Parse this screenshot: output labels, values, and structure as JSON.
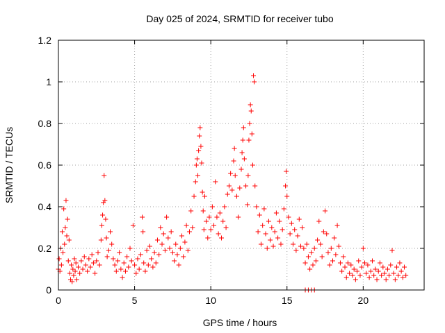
{
  "chart_data": {
    "type": "scatter",
    "title": "Day 025 of 2024, SRMTID for receiver tubo",
    "xlabel": "GPS time / hours",
    "ylabel": "SRMTID / TECUs",
    "xlim": [
      0,
      24
    ],
    "ylim": [
      0,
      1.2
    ],
    "xticks": [
      0,
      5,
      10,
      15,
      20
    ],
    "xtick_labels": [
      "0",
      "5",
      "10",
      "15",
      "20"
    ],
    "yticks": [
      0,
      0.2,
      0.4,
      0.6,
      0.8,
      1.0,
      1.2
    ],
    "ytick_labels": [
      "0",
      "0.2",
      "0.4",
      "0.6",
      "0.8",
      "1",
      "1.2"
    ],
    "grid": true,
    "marker": "+",
    "series": [
      {
        "name": "SRMTID",
        "color": "#ff0000",
        "points": [
          [
            0.0,
            0.1
          ],
          [
            0.05,
            0.15
          ],
          [
            0.1,
            0.09
          ],
          [
            0.15,
            0.2
          ],
          [
            0.2,
            0.12
          ],
          [
            0.25,
            0.28
          ],
          [
            0.3,
            0.18
          ],
          [
            0.35,
            0.39
          ],
          [
            0.4,
            0.22
          ],
          [
            0.45,
            0.3
          ],
          [
            0.5,
            0.43
          ],
          [
            0.55,
            0.26
          ],
          [
            0.6,
            0.34
          ],
          [
            0.65,
            0.14
          ],
          [
            0.7,
            0.24
          ],
          [
            0.75,
            0.08
          ],
          [
            0.8,
            0.05
          ],
          [
            0.85,
            0.12
          ],
          [
            0.9,
            0.04
          ],
          [
            0.95,
            0.1
          ],
          [
            1.0,
            0.07
          ],
          [
            1.05,
            0.15
          ],
          [
            1.1,
            0.09
          ],
          [
            1.15,
            0.13
          ],
          [
            1.2,
            0.05
          ],
          [
            1.3,
            0.11
          ],
          [
            1.4,
            0.08
          ],
          [
            1.5,
            0.14
          ],
          [
            1.6,
            0.1
          ],
          [
            1.7,
            0.16
          ],
          [
            1.8,
            0.12
          ],
          [
            1.9,
            0.09
          ],
          [
            2.0,
            0.15
          ],
          [
            2.1,
            0.11
          ],
          [
            2.2,
            0.17
          ],
          [
            2.3,
            0.13
          ],
          [
            2.4,
            0.08
          ],
          [
            2.5,
            0.14
          ],
          [
            2.6,
            0.18
          ],
          [
            2.7,
            0.12
          ],
          [
            2.8,
            0.24
          ],
          [
            2.85,
            0.31
          ],
          [
            2.9,
            0.36
          ],
          [
            2.95,
            0.42
          ],
          [
            3.0,
            0.55
          ],
          [
            3.05,
            0.43
          ],
          [
            3.1,
            0.34
          ],
          [
            3.15,
            0.25
          ],
          [
            3.2,
            0.16
          ],
          [
            3.3,
            0.19
          ],
          [
            3.4,
            0.28
          ],
          [
            3.5,
            0.22
          ],
          [
            3.6,
            0.15
          ],
          [
            3.7,
            0.12
          ],
          [
            3.8,
            0.09
          ],
          [
            3.9,
            0.14
          ],
          [
            4.0,
            0.18
          ],
          [
            4.1,
            0.1
          ],
          [
            4.2,
            0.06
          ],
          [
            4.3,
            0.13
          ],
          [
            4.4,
            0.09
          ],
          [
            4.5,
            0.16
          ],
          [
            4.6,
            0.11
          ],
          [
            4.7,
            0.2
          ],
          [
            4.8,
            0.14
          ],
          [
            4.9,
            0.31
          ],
          [
            5.0,
            0.12
          ],
          [
            5.1,
            0.08
          ],
          [
            5.2,
            0.15
          ],
          [
            5.3,
            0.1
          ],
          [
            5.4,
            0.17
          ],
          [
            5.5,
            0.35
          ],
          [
            5.55,
            0.28
          ],
          [
            5.6,
            0.13
          ],
          [
            5.7,
            0.09
          ],
          [
            5.8,
            0.19
          ],
          [
            5.9,
            0.12
          ],
          [
            6.0,
            0.21
          ],
          [
            6.1,
            0.15
          ],
          [
            6.2,
            0.11
          ],
          [
            6.3,
            0.18
          ],
          [
            6.4,
            0.13
          ],
          [
            6.5,
            0.24
          ],
          [
            6.6,
            0.17
          ],
          [
            6.7,
            0.3
          ],
          [
            6.8,
            0.22
          ],
          [
            6.9,
            0.27
          ],
          [
            7.0,
            0.19
          ],
          [
            7.1,
            0.35
          ],
          [
            7.2,
            0.25
          ],
          [
            7.3,
            0.2
          ],
          [
            7.4,
            0.28
          ],
          [
            7.5,
            0.18
          ],
          [
            7.6,
            0.14
          ],
          [
            7.7,
            0.22
          ],
          [
            7.8,
            0.17
          ],
          [
            7.9,
            0.12
          ],
          [
            8.0,
            0.2
          ],
          [
            8.1,
            0.26
          ],
          [
            8.2,
            0.16
          ],
          [
            8.3,
            0.23
          ],
          [
            8.4,
            0.31
          ],
          [
            8.5,
            0.19
          ],
          [
            8.6,
            0.28
          ],
          [
            8.7,
            0.38
          ],
          [
            8.8,
            0.3
          ],
          [
            8.9,
            0.45
          ],
          [
            9.0,
            0.52
          ],
          [
            9.05,
            0.6
          ],
          [
            9.1,
            0.63
          ],
          [
            9.15,
            0.55
          ],
          [
            9.2,
            0.67
          ],
          [
            9.25,
            0.74
          ],
          [
            9.3,
            0.78
          ],
          [
            9.35,
            0.69
          ],
          [
            9.4,
            0.61
          ],
          [
            9.45,
            0.47
          ],
          [
            9.5,
            0.38
          ],
          [
            9.55,
            0.29
          ],
          [
            9.6,
            0.45
          ],
          [
            9.7,
            0.33
          ],
          [
            9.8,
            0.25
          ],
          [
            9.9,
            0.35
          ],
          [
            10.0,
            0.29
          ],
          [
            10.1,
            0.4
          ],
          [
            10.2,
            0.31
          ],
          [
            10.3,
            0.52
          ],
          [
            10.4,
            0.35
          ],
          [
            10.5,
            0.27
          ],
          [
            10.6,
            0.37
          ],
          [
            10.7,
            0.25
          ],
          [
            10.8,
            0.33
          ],
          [
            10.9,
            0.4
          ],
          [
            11.0,
            0.3
          ],
          [
            11.1,
            0.46
          ],
          [
            11.2,
            0.5
          ],
          [
            11.3,
            0.56
          ],
          [
            11.4,
            0.48
          ],
          [
            11.5,
            0.62
          ],
          [
            11.55,
            0.68
          ],
          [
            11.6,
            0.55
          ],
          [
            11.7,
            0.45
          ],
          [
            11.8,
            0.35
          ],
          [
            11.9,
            0.49
          ],
          [
            12.0,
            0.58
          ],
          [
            12.05,
            0.66
          ],
          [
            12.1,
            0.72
          ],
          [
            12.15,
            0.78
          ],
          [
            12.2,
            0.63
          ],
          [
            12.3,
            0.5
          ],
          [
            12.4,
            0.41
          ],
          [
            12.45,
            0.55
          ],
          [
            12.5,
            0.72
          ],
          [
            12.55,
            0.8
          ],
          [
            12.6,
            0.89
          ],
          [
            12.65,
            0.86
          ],
          [
            12.7,
            0.75
          ],
          [
            12.75,
            0.6
          ],
          [
            12.8,
            1.03
          ],
          [
            12.85,
            1.0
          ],
          [
            12.9,
            0.5
          ],
          [
            13.0,
            0.4
          ],
          [
            13.1,
            0.28
          ],
          [
            13.2,
            0.36
          ],
          [
            13.3,
            0.22
          ],
          [
            13.4,
            0.31
          ],
          [
            13.5,
            0.39
          ],
          [
            13.6,
            0.27
          ],
          [
            13.7,
            0.2
          ],
          [
            13.8,
            0.33
          ],
          [
            13.9,
            0.24
          ],
          [
            14.0,
            0.3
          ],
          [
            14.1,
            0.21
          ],
          [
            14.2,
            0.28
          ],
          [
            14.3,
            0.37
          ],
          [
            14.4,
            0.25
          ],
          [
            14.5,
            0.33
          ],
          [
            14.6,
            0.22
          ],
          [
            14.7,
            0.29
          ],
          [
            14.8,
            0.39
          ],
          [
            14.9,
            0.5
          ],
          [
            14.95,
            0.57
          ],
          [
            15.0,
            0.45
          ],
          [
            15.1,
            0.35
          ],
          [
            15.2,
            0.27
          ],
          [
            15.3,
            0.32
          ],
          [
            15.4,
            0.22
          ],
          [
            15.5,
            0.29
          ],
          [
            15.6,
            0.19
          ],
          [
            15.7,
            0.26
          ],
          [
            15.8,
            0.34
          ],
          [
            15.9,
            0.21
          ],
          [
            16.0,
            0.3
          ],
          [
            16.1,
            0.2
          ],
          [
            16.2,
            0.13
          ],
          [
            16.3,
            0.22
          ],
          [
            16.4,
            0.16
          ],
          [
            16.5,
            0.1
          ],
          [
            16.6,
            0.18
          ],
          [
            16.7,
            0.12
          ],
          [
            16.8,
            0.2
          ],
          [
            16.9,
            0.14
          ],
          [
            17.0,
            0.24
          ],
          [
            17.1,
            0.33
          ],
          [
            17.2,
            0.22
          ],
          [
            17.3,
            0.16
          ],
          [
            17.4,
            0.28
          ],
          [
            17.5,
            0.38
          ],
          [
            17.6,
            0.27
          ],
          [
            17.7,
            0.18
          ],
          [
            17.8,
            0.12
          ],
          [
            17.9,
            0.2
          ],
          [
            18.0,
            0.14
          ],
          [
            18.1,
            0.25
          ],
          [
            18.2,
            0.17
          ],
          [
            18.3,
            0.31
          ],
          [
            18.4,
            0.21
          ],
          [
            18.5,
            0.13
          ],
          [
            18.6,
            0.09
          ],
          [
            18.7,
            0.16
          ],
          [
            18.8,
            0.11
          ],
          [
            18.9,
            0.06
          ],
          [
            19.0,
            0.13
          ],
          [
            19.1,
            0.08
          ],
          [
            19.2,
            0.12
          ],
          [
            19.3,
            0.07
          ],
          [
            19.4,
            0.1
          ],
          [
            19.5,
            0.05
          ],
          [
            19.6,
            0.09
          ],
          [
            19.7,
            0.14
          ],
          [
            19.8,
            0.07
          ],
          [
            19.9,
            0.11
          ],
          [
            20.0,
            0.2
          ],
          [
            20.1,
            0.13
          ],
          [
            20.2,
            0.08
          ],
          [
            20.3,
            0.12
          ],
          [
            20.4,
            0.06
          ],
          [
            20.5,
            0.09
          ],
          [
            20.6,
            0.14
          ],
          [
            20.7,
            0.07
          ],
          [
            20.8,
            0.1
          ],
          [
            20.9,
            0.05
          ],
          [
            21.0,
            0.09
          ],
          [
            21.1,
            0.13
          ],
          [
            21.2,
            0.07
          ],
          [
            21.3,
            0.11
          ],
          [
            21.4,
            0.08
          ],
          [
            21.5,
            0.05
          ],
          [
            21.6,
            0.1
          ],
          [
            21.7,
            0.07
          ],
          [
            21.8,
            0.12
          ],
          [
            21.9,
            0.19
          ],
          [
            22.0,
            0.08
          ],
          [
            22.1,
            0.05
          ],
          [
            22.2,
            0.11
          ],
          [
            22.3,
            0.07
          ],
          [
            22.4,
            0.13
          ],
          [
            22.5,
            0.09
          ],
          [
            22.6,
            0.06
          ],
          [
            22.7,
            0.11
          ],
          [
            22.8,
            0.07
          ],
          [
            16.2,
            0.0
          ],
          [
            16.4,
            0.0
          ],
          [
            16.6,
            0.0
          ],
          [
            16.8,
            0.0
          ]
        ]
      }
    ]
  }
}
